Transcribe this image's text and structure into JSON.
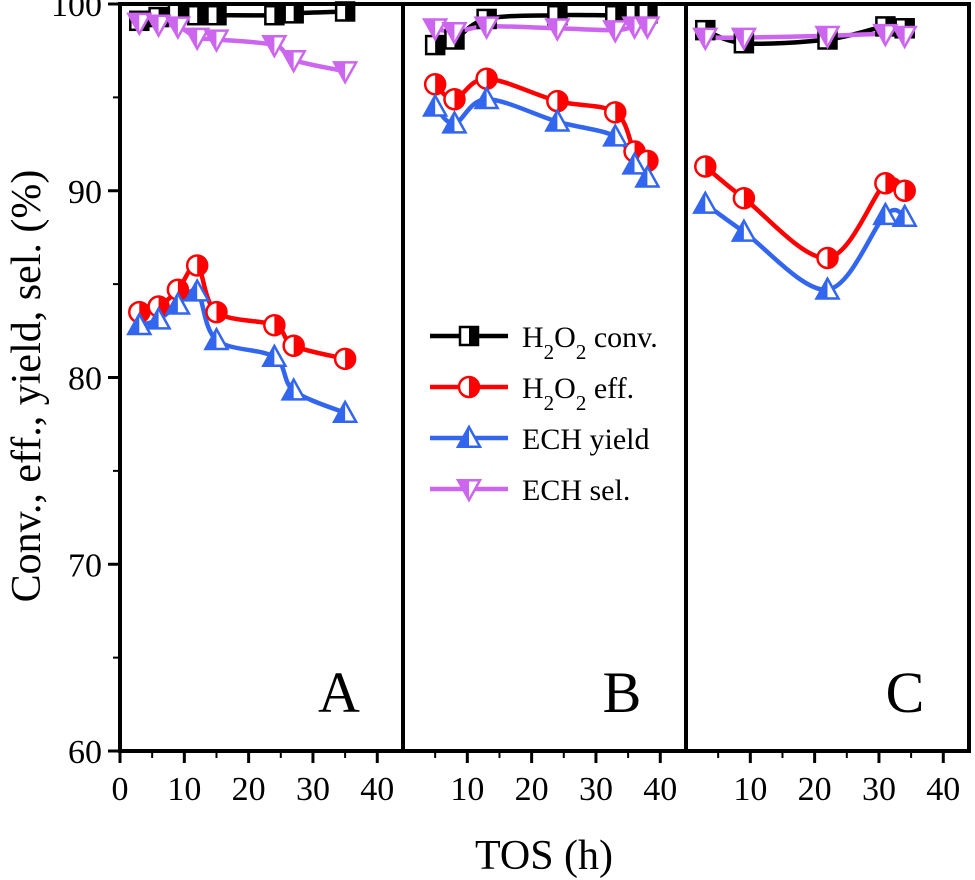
{
  "chart_data": {
    "type": "line",
    "ylabel": "Conv., eff., yield, sel. (%)",
    "xlabel": "TOS (h)",
    "ylim": [
      60,
      100
    ],
    "y_ticks": [
      60,
      70,
      80,
      90,
      100
    ],
    "grid": false,
    "legend_position": "center",
    "series_styles": [
      {
        "key": "conv",
        "name": "H2O2 conv.",
        "name_sub": "H|2|O|2| conv.",
        "color": "#000000",
        "marker": "square-half"
      },
      {
        "key": "eff",
        "name": "H2O2 eff.",
        "name_sub": "H|2|O|2| eff.",
        "color": "#ff0000",
        "marker": "circle-half"
      },
      {
        "key": "yield",
        "name": "ECH yield",
        "name_sub": "ECH yield",
        "color": "#3366ee",
        "marker": "triangle-up-half"
      },
      {
        "key": "sel",
        "name": "ECH sel.",
        "name_sub": "ECH sel.",
        "color": "#cc66ee",
        "marker": "triangle-down-half"
      }
    ],
    "panels": [
      {
        "label": "A",
        "xlim": [
          0,
          44
        ],
        "x_ticks": [
          0,
          10,
          20,
          30,
          40
        ],
        "series": [
          {
            "key": "conv",
            "x": [
              3,
              6,
              9,
              12,
              15,
              24,
              27,
              35
            ],
            "y": [
              99.1,
              99.3,
              99.5,
              99.4,
              99.4,
              99.4,
              99.5,
              99.6
            ]
          },
          {
            "key": "eff",
            "x": [
              3,
              6,
              9,
              12,
              15,
              24,
              27,
              35
            ],
            "y": [
              83.5,
              83.8,
              84.7,
              86.0,
              83.5,
              82.8,
              81.7,
              81.0
            ]
          },
          {
            "key": "yield",
            "x": [
              3,
              6,
              9,
              12,
              15,
              24,
              27,
              35
            ],
            "y": [
              82.8,
              83.1,
              83.9,
              84.6,
              82.0,
              81.1,
              79.3,
              78.1
            ]
          },
          {
            "key": "sel",
            "x": [
              3,
              6,
              9,
              12,
              15,
              24,
              27,
              35
            ],
            "y": [
              99.0,
              98.9,
              98.8,
              98.2,
              98.1,
              97.8,
              97.0,
              96.4
            ]
          }
        ]
      },
      {
        "label": "B",
        "xlim": [
          0,
          44
        ],
        "x_ticks": [
          10,
          20,
          30,
          40
        ],
        "series": [
          {
            "key": "conv",
            "x": [
              5,
              8,
              13,
              24,
              33,
              36,
              38
            ],
            "y": [
              97.8,
              98.1,
              99.2,
              99.4,
              99.4,
              99.5,
              99.5
            ]
          },
          {
            "key": "eff",
            "x": [
              5,
              8,
              13,
              24,
              33,
              36,
              38
            ],
            "y": [
              95.7,
              94.9,
              96.0,
              94.8,
              94.2,
              92.1,
              91.6
            ]
          },
          {
            "key": "yield",
            "x": [
              5,
              8,
              13,
              24,
              33,
              36,
              38
            ],
            "y": [
              94.5,
              93.6,
              94.9,
              93.7,
              92.9,
              91.4,
              90.7
            ]
          },
          {
            "key": "sel",
            "x": [
              5,
              8,
              13,
              24,
              33,
              36,
              38
            ],
            "y": [
              98.7,
              98.5,
              98.8,
              98.7,
              98.6,
              98.8,
              98.8
            ]
          }
        ]
      },
      {
        "label": "C",
        "xlim": [
          0,
          44
        ],
        "x_ticks": [
          10,
          20,
          30,
          40
        ],
        "series": [
          {
            "key": "conv",
            "x": [
              3,
              9,
              22,
              31,
              34
            ],
            "y": [
              98.6,
              97.9,
              98.1,
              98.8,
              98.7
            ]
          },
          {
            "key": "eff",
            "x": [
              3,
              9,
              22,
              31,
              34
            ],
            "y": [
              91.3,
              89.6,
              86.4,
              90.4,
              90.0
            ]
          },
          {
            "key": "yield",
            "x": [
              3,
              9,
              22,
              31,
              34
            ],
            "y": [
              89.3,
              87.8,
              84.7,
              88.7,
              88.6
            ]
          },
          {
            "key": "sel",
            "x": [
              3,
              9,
              22,
              31,
              34
            ],
            "y": [
              98.2,
              98.2,
              98.3,
              98.4,
              98.3
            ]
          }
        ]
      }
    ]
  }
}
